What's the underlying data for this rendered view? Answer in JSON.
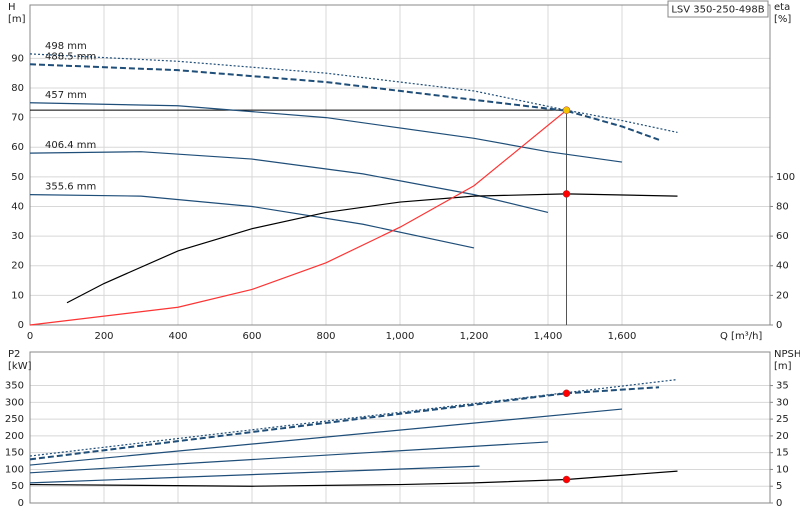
{
  "chart_data": [
    {
      "type": "line",
      "legend_box": "LSV 350-250-498B",
      "y_label": "H",
      "y_unit": "[m]",
      "y2_label": "eta",
      "y2_unit": "[%]",
      "x_label": "Q [m³/h]",
      "xlim": [
        0,
        2000
      ],
      "xticks": [
        0,
        200,
        400,
        600,
        800,
        {
          "value": 1000,
          "label": "1,000"
        },
        {
          "value": 1200,
          "label": "1,200"
        },
        {
          "value": 1400,
          "label": "1,400"
        },
        {
          "value": 1600,
          "label": "1,600"
        }
      ],
      "ylim": [
        0,
        108
      ],
      "yticks": [
        0,
        10,
        20,
        30,
        40,
        50,
        60,
        70,
        80,
        90
      ],
      "y2lim": [
        0,
        216
      ],
      "y2ticks": [
        0,
        20,
        40,
        60,
        80,
        100
      ],
      "grid": true,
      "series": [
        {
          "name": "498 mm",
          "color": "#1f4e79",
          "dash": "2,2",
          "x": [
            0,
            400,
            800,
            1200,
            1450,
            1600,
            1750
          ],
          "values": [
            91.5,
            89,
            85,
            79,
            72.5,
            69,
            65
          ]
        },
        {
          "name": "488.5 mm",
          "color": "#1f4e79",
          "dash": "6,3",
          "x": [
            0,
            400,
            800,
            1200,
            1450,
            1600,
            1700
          ],
          "values": [
            88,
            86,
            82,
            76,
            72.3,
            67,
            62.5
          ]
        },
        {
          "name": "457 mm",
          "color": "#1f4e79",
          "x": [
            0,
            400,
            800,
            1200,
            1400,
            1600
          ],
          "values": [
            75,
            74,
            70,
            63,
            58.5,
            55
          ]
        },
        {
          "name": "406.4 mm",
          "color": "#1f4e79",
          "x": [
            0,
            300,
            600,
            900,
            1200,
            1400
          ],
          "values": [
            58,
            58.5,
            56,
            51,
            44,
            38
          ]
        },
        {
          "name": "355.6 mm",
          "color": "#1f4e79",
          "x": [
            0,
            300,
            600,
            900,
            1200
          ],
          "values": [
            44,
            43.5,
            40,
            34,
            26
          ]
        },
        {
          "color": "#000000",
          "axis": "y2",
          "x": [
            100,
            200,
            400,
            600,
            800,
            1000,
            1200,
            1450,
            1750
          ],
          "values": [
            15,
            28,
            50,
            65,
            76,
            83,
            87,
            88.5,
            87
          ]
        },
        {
          "color": "#ff3333",
          "x": [
            0,
            400,
            600,
            800,
            1000,
            1200,
            1450
          ],
          "values": [
            0,
            6,
            12,
            21,
            33,
            47,
            72.5
          ]
        }
      ],
      "points": [
        {
          "x": 1450,
          "y": 72.5,
          "color": "#f5c400"
        },
        {
          "x": 1450,
          "y": 88.5,
          "axis": "y2",
          "color": "#ff0000"
        }
      ]
    },
    {
      "type": "line",
      "y_label": "P2",
      "y_unit": "[kW]",
      "y2_label": "NPSH",
      "y2_unit": "[m]",
      "xlim": [
        0,
        2000
      ],
      "xticks": [
        0,
        200,
        400,
        600,
        800,
        1000,
        1200,
        1400,
        1600
      ],
      "ylim": [
        0,
        450
      ],
      "yticks": [
        0,
        50,
        100,
        150,
        200,
        250,
        300,
        350
      ],
      "y2lim": [
        0,
        45
      ],
      "y2ticks": [
        0,
        5,
        10,
        15,
        20,
        25,
        30,
        35
      ],
      "grid": true,
      "series": [
        {
          "color": "#1f4e79",
          "dash": "2,2",
          "x": [
            0,
            1750
          ],
          "values": [
            140,
            368
          ]
        },
        {
          "color": "#1f4e79",
          "dash": "6,3",
          "x": [
            0,
            1450,
            1700
          ],
          "values": [
            130,
            327,
            345
          ]
        },
        {
          "color": "#1f4e79",
          "x": [
            0,
            1600
          ],
          "values": [
            113,
            280
          ]
        },
        {
          "color": "#1f4e79",
          "x": [
            0,
            1400
          ],
          "values": [
            90,
            182
          ]
        },
        {
          "color": "#1f4e79",
          "x": [
            0,
            1215
          ],
          "values": [
            60,
            110
          ]
        },
        {
          "color": "#000000",
          "axis": "y2",
          "x": [
            0,
            600,
            1000,
            1200,
            1450,
            1750
          ],
          "values": [
            5.5,
            5,
            5.5,
            6,
            7,
            9.5
          ]
        }
      ],
      "points": [
        {
          "x": 1450,
          "y": 327,
          "color": "#ff0000"
        },
        {
          "x": 1450,
          "y": 7,
          "axis": "y2",
          "color": "#ff0000"
        }
      ]
    }
  ]
}
